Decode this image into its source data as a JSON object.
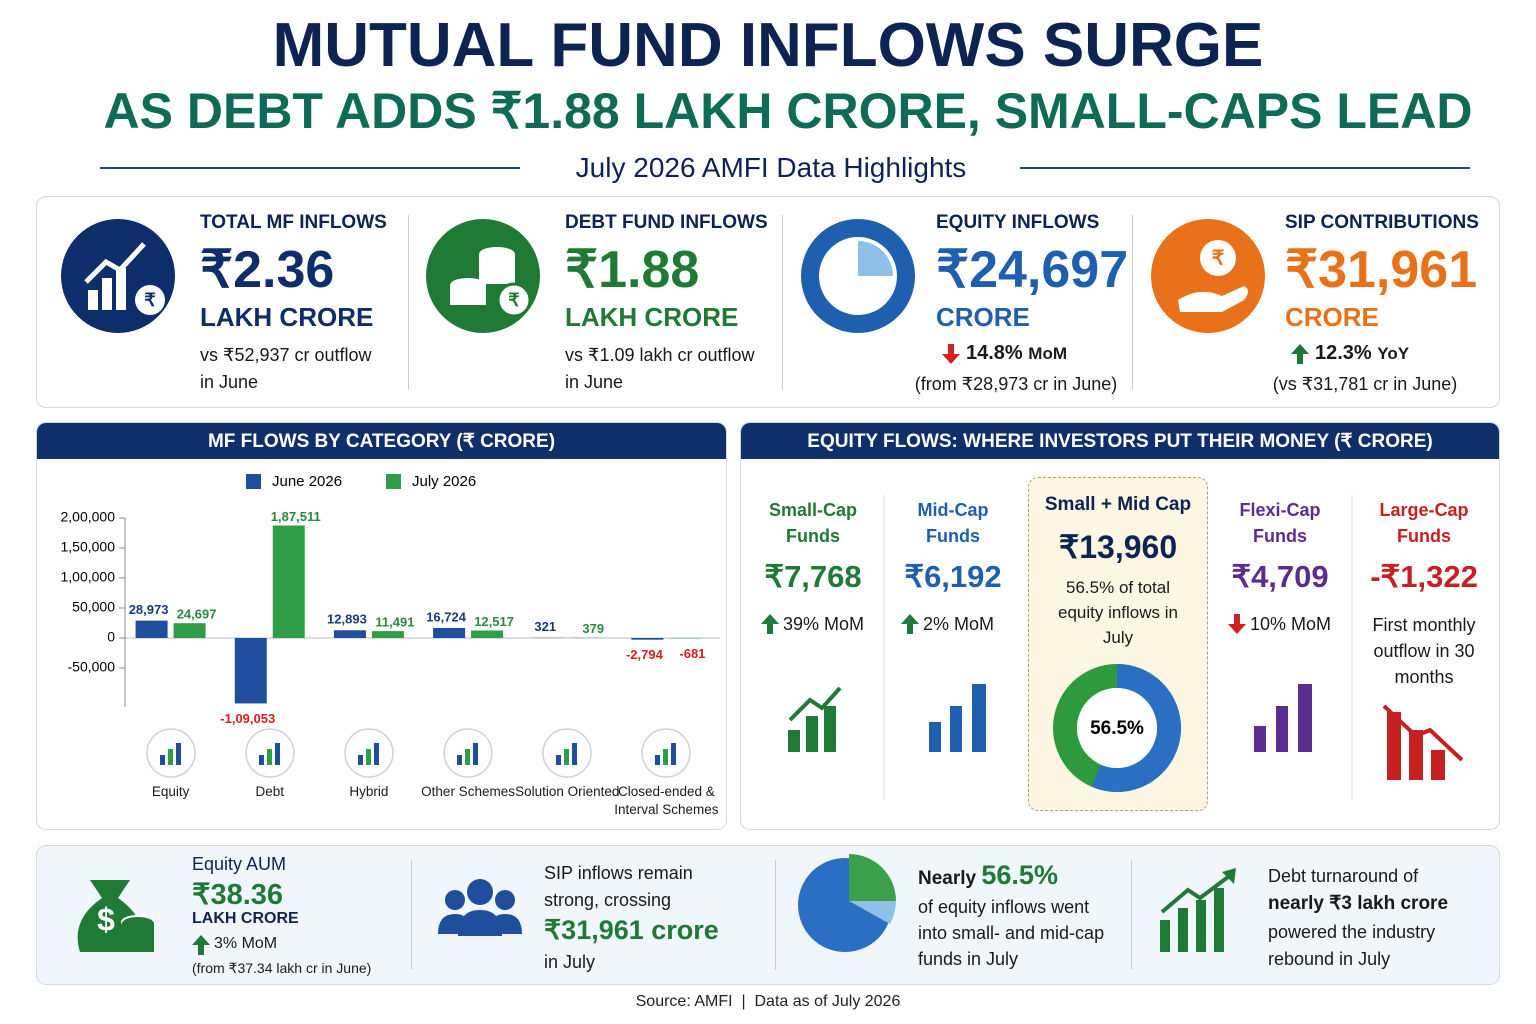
{
  "header": {
    "title": "MUTUAL FUND INFLOWS SURGE",
    "subtitle": "AS DEBT ADDS ₹1.88 LAKH CRORE, SMALL-CAPS LEAD",
    "tagline": "July 2026 AMFI Data Highlights"
  },
  "kpis": [
    {
      "label": "TOTAL MF INFLOWS",
      "value": "₹2.36",
      "unit": "LAKH CRORE",
      "color": "#0d2e6b",
      "note": [
        "vs ₹52,937 cr outflow",
        "in June"
      ]
    },
    {
      "label": "DEBT FUND INFLOWS",
      "value": "₹1.88",
      "unit": "LAKH CRORE",
      "color": "#1e7a34",
      "note": [
        "vs ₹1.09 lakh cr outflow",
        "in June"
      ]
    },
    {
      "label": "EQUITY INFLOWS",
      "value": "₹24,697",
      "unit": "CRORE",
      "color": "#1f5fb0",
      "change": "14.8%",
      "period": "MoM",
      "direction": "down",
      "note": [
        "(from ₹28,973 cr in June)"
      ]
    },
    {
      "label": "SIP CONTRIBUTIONS",
      "value": "₹31,961",
      "unit": "CRORE",
      "color": "#e8711a",
      "change": "12.3%",
      "period": "YoY",
      "direction": "up",
      "note": [
        "(vs ₹31,781 cr in June)"
      ]
    }
  ],
  "chart_data": {
    "type": "bar",
    "title": "MF FLOWS BY CATEGORY (₹ CRORE)",
    "categories": [
      "Equity",
      "Debt",
      "Hybrid",
      "Other Schemes",
      "Solution Oriented",
      "Closed-ended & Interval Schemes"
    ],
    "series": [
      {
        "name": "June 2026",
        "color": "#1f4e9c",
        "values": [
          28973,
          -109053,
          12893,
          16724,
          321,
          -2794
        ],
        "value_labels": [
          "28,973",
          "-1,09,053",
          "12,893",
          "16,724",
          "321",
          "-2,794"
        ]
      },
      {
        "name": "July 2026",
        "color": "#2e9e48",
        "values": [
          24697,
          187511,
          11491,
          12517,
          379,
          -681
        ],
        "value_labels": [
          "24,697",
          "1,87,511",
          "11,491",
          "12,517",
          "379",
          "-681"
        ]
      }
    ],
    "ylim": [
      -115000,
      200000
    ],
    "yticks": [
      {
        "value": 200000,
        "label": "2,00,000"
      },
      {
        "value": 150000,
        "label": "1,50,000"
      },
      {
        "value": 100000,
        "label": "1,00,000"
      },
      {
        "value": 50000,
        "label": "50,000"
      },
      0,
      {
        "value": -50000,
        "label": "-50,000"
      }
    ],
    "legend": "top"
  },
  "equity_flows": {
    "title": "EQUITY FLOWS: WHERE INVESTORS PUT THEIR MONEY (₹ CRORE)",
    "items": [
      {
        "name": "Small-Cap Funds",
        "value": "₹7,768",
        "change": "39% MoM",
        "direction": "up",
        "color": "#1e7a34"
      },
      {
        "name": "Mid-Cap Funds",
        "value": "₹6,192",
        "change": "2% MoM",
        "direction": "up",
        "color": "#1f5fb0"
      },
      {
        "name": "Flexi-Cap Funds",
        "value": "₹4,709",
        "change": "10% MoM",
        "direction": "down",
        "color": "#5b2d91"
      },
      {
        "name": "Large-Cap Funds",
        "value": "-₹1,322",
        "note": "First monthly outflow in 30 months",
        "color": "#c62020"
      }
    ],
    "highlight": {
      "name": "Small + Mid Cap",
      "value": "₹13,960",
      "note": "56.5% of total equity inflows in July",
      "share": 56.5,
      "share_label": "56.5%"
    }
  },
  "bottom": {
    "aum": {
      "label": "Equity AUM",
      "value": "₹38.36",
      "unit": "LAKH CRORE",
      "change": "3% MoM",
      "direction": "up",
      "note": "(from ₹37.34 lakh cr in June)"
    },
    "sip": {
      "text": "SIP inflows remain strong, crossing",
      "value": "₹31,961 crore",
      "suffix": "in July"
    },
    "share": {
      "prefix": "Nearly",
      "value": "56.5%",
      "text": "of equity inflows went into small- and mid-cap funds in July"
    },
    "debt": {
      "text": "Debt turnaround of",
      "highlight": "nearly ₹3 lakh crore",
      "suffix": "powered the industry rebound in July"
    }
  },
  "footer": {
    "source": "Source: AMFI",
    "asof": "Data as of July 2026"
  }
}
